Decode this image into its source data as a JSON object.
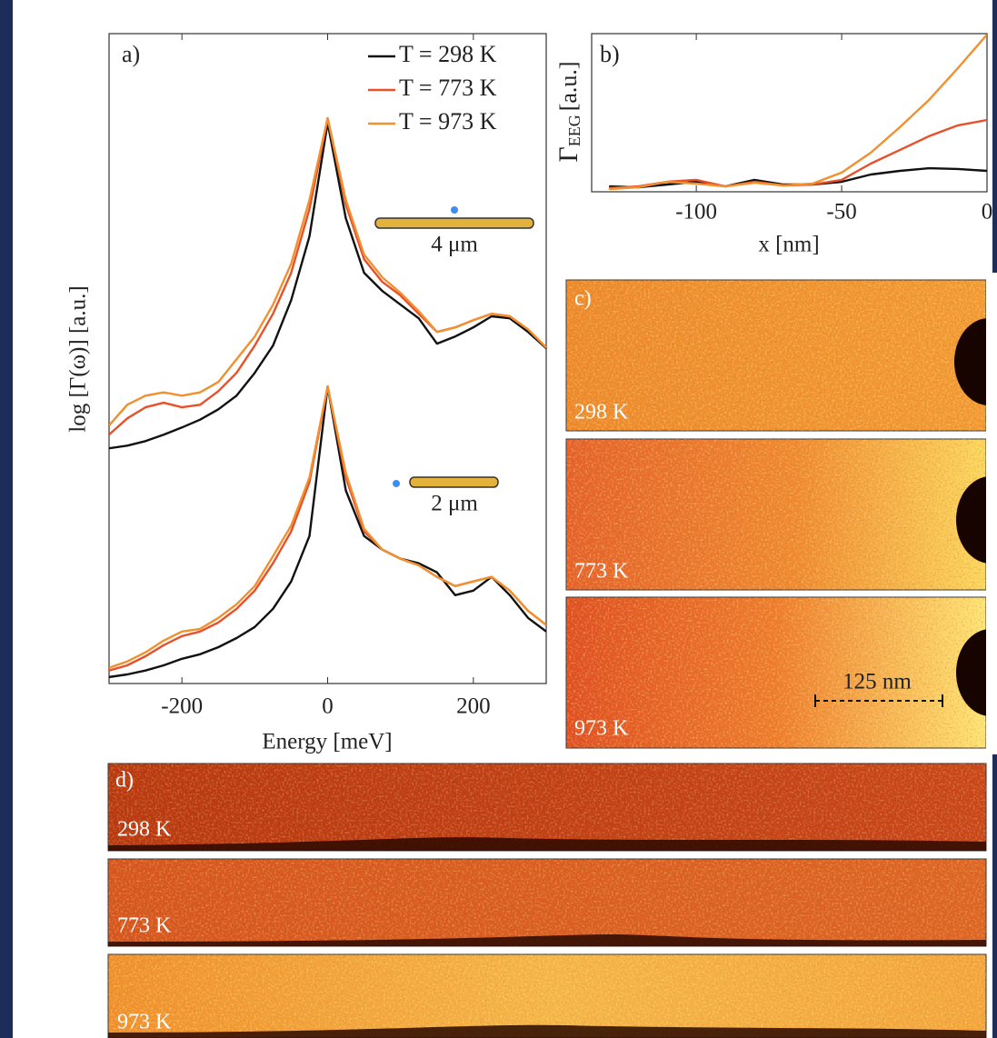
{
  "chart_data": [
    {
      "type": "line",
      "label": "a)",
      "xlabel": "Energy [meV]",
      "ylabel": "log [Γ(ω)] [a.u.]",
      "legend": "upper right",
      "x": [
        -300,
        -275,
        -250,
        -225,
        -200,
        -175,
        -150,
        -125,
        -100,
        -75,
        -50,
        -25,
        0,
        25,
        50,
        75,
        100,
        125,
        150,
        175,
        200,
        225,
        250,
        275,
        300
      ],
      "xlim": [
        -300,
        300
      ],
      "xticks": [
        -200,
        0,
        200
      ],
      "ylim": [
        0,
        100
      ],
      "series": [
        {
          "name": "T = 298 K",
          "color": "#111111",
          "values": [
            36.2,
            36.6,
            37.3,
            38.3,
            39.4,
            40.6,
            42.2,
            44.3,
            47.8,
            52.0,
            59.0,
            68.8,
            86.3,
            71.6,
            63.2,
            60.4,
            58.3,
            56.2,
            52.3,
            53.4,
            54.8,
            56.5,
            56.2,
            54.1,
            51.6
          ],
          "values_lower": [
            1.0,
            1.4,
            2.0,
            2.8,
            3.8,
            4.5,
            5.6,
            7.0,
            8.7,
            11.5,
            15.7,
            22.7,
            45.7,
            29.7,
            22.7,
            20.6,
            19.2,
            18.5,
            17.1,
            13.6,
            14.3,
            16.4,
            13.6,
            10.1,
            8.0
          ]
        },
        {
          "name": "T = 773 K",
          "color": "#e8502a",
          "values": [
            38.3,
            40.8,
            42.5,
            43.2,
            42.5,
            42.9,
            45.0,
            47.8,
            52.0,
            56.9,
            63.2,
            73.0,
            87.0,
            73.7,
            65.3,
            61.8,
            59.7,
            56.9,
            54.1,
            54.8,
            55.9,
            56.9,
            56.5,
            54.5,
            51.7
          ],
          "values_lower": [
            2.0,
            2.8,
            4.2,
            5.9,
            7.3,
            8.0,
            9.4,
            11.5,
            14.3,
            18.5,
            23.4,
            31.0,
            45.7,
            31.7,
            23.4,
            20.6,
            19.2,
            18.2,
            16.4,
            15.0,
            15.7,
            16.4,
            14.3,
            11.2,
            9.0
          ]
        },
        {
          "name": "T = 973 K",
          "color": "#f0902e",
          "values": [
            39.7,
            42.9,
            44.3,
            44.8,
            44.3,
            44.8,
            46.4,
            49.9,
            53.4,
            58.3,
            64.6,
            74.4,
            87.0,
            74.4,
            66.0,
            62.5,
            60.1,
            57.3,
            54.1,
            54.8,
            55.9,
            56.9,
            56.5,
            54.5,
            51.7
          ],
          "values_lower": [
            2.4,
            3.4,
            4.8,
            6.6,
            8.0,
            8.4,
            10.1,
            12.2,
            15.0,
            19.6,
            24.3,
            31.7,
            45.7,
            32.4,
            23.8,
            20.6,
            19.2,
            18.2,
            16.4,
            15.0,
            15.7,
            16.4,
            14.3,
            11.2,
            9.0
          ]
        }
      ],
      "annotations": [
        "4 μm",
        "2 μm"
      ]
    },
    {
      "type": "line",
      "label": "b)",
      "xlabel": "x [nm]",
      "ylabel": {
        "symbol": "Γ",
        "subscript": "EEG",
        "unit": "[a.u.]"
      },
      "x": [
        -130,
        -120,
        -110,
        -100,
        -90,
        -80,
        -70,
        -60,
        -50,
        -40,
        -30,
        -20,
        -10,
        0
      ],
      "xlim": [
        -136,
        0
      ],
      "xticks": [
        -100,
        -50,
        0
      ],
      "ylim": [
        0,
        100
      ],
      "series": [
        {
          "color": "#111111",
          "values": [
            3.4,
            2.9,
            4.6,
            6.3,
            3.4,
            7.5,
            4.6,
            4.6,
            6.3,
            10.9,
            13.2,
            14.9,
            14.4,
            13.2
          ]
        },
        {
          "color": "#e8502a",
          "values": [
            2.3,
            3.4,
            6.3,
            7.5,
            3.4,
            6.3,
            4.0,
            4.6,
            7.5,
            17.8,
            26.4,
            35.1,
            42.0,
            45.4
          ]
        },
        {
          "color": "#f0902e",
          "values": [
            1.7,
            2.9,
            6.3,
            5.2,
            3.4,
            5.7,
            4.0,
            5.2,
            12.1,
            24.7,
            40.8,
            58.0,
            78.2,
            99.4
          ]
        }
      ]
    }
  ],
  "panel_c": {
    "label": "c)",
    "images": [
      {
        "label": "298 K"
      },
      {
        "label": "773 K"
      },
      {
        "label": "973 K"
      }
    ],
    "scale_bar": "125 nm"
  },
  "panel_d": {
    "label": "d)",
    "images": [
      {
        "label": "298 K"
      },
      {
        "label": "773 K"
      },
      {
        "label": "973 K"
      }
    ]
  }
}
